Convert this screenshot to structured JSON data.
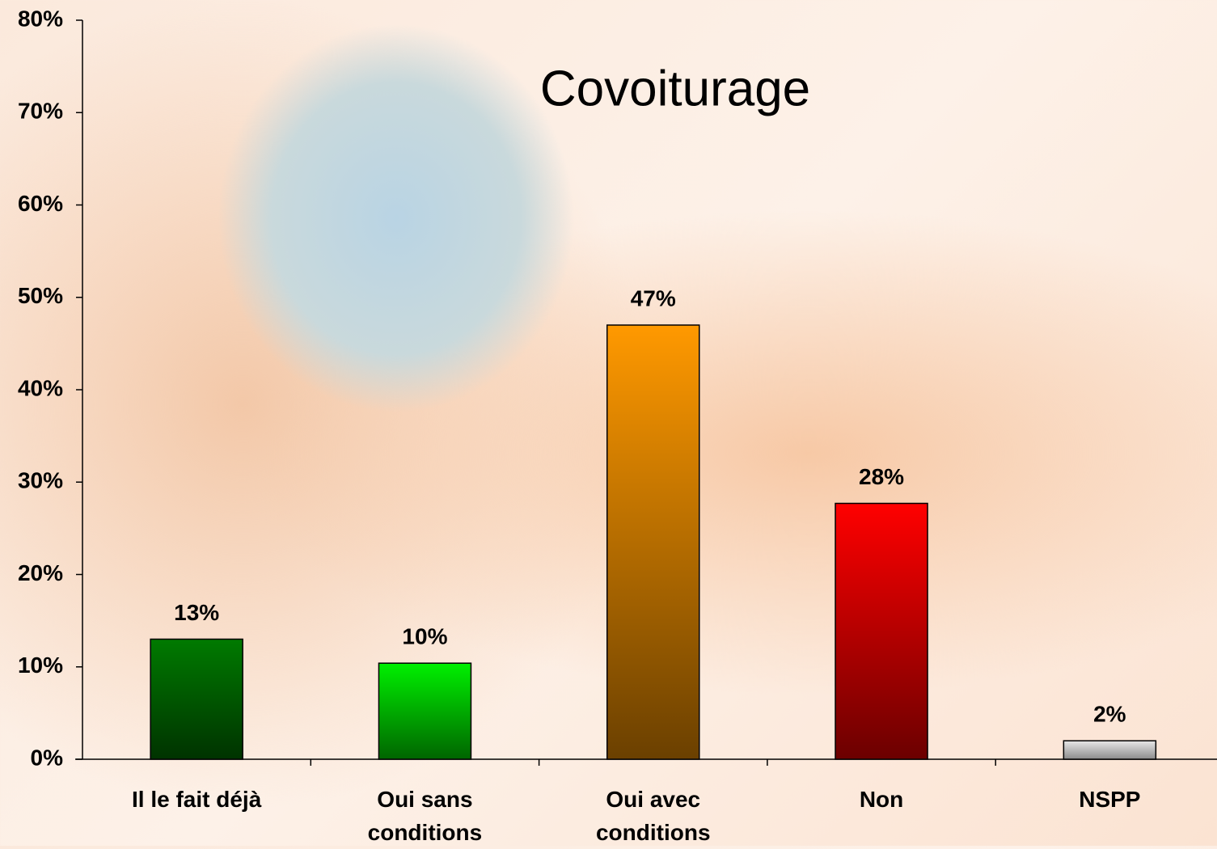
{
  "chart_data": {
    "type": "bar",
    "title": "Covoiturage",
    "categories": [
      "Il le fait déjà",
      "Oui sans conditions",
      "Oui avec conditions",
      "Non",
      "NSPP"
    ],
    "values": [
      13,
      10.4,
      47,
      27.7,
      2
    ],
    "value_labels": [
      "13%",
      "10%",
      "47%",
      "28%",
      "2%"
    ],
    "colors": [
      "#007a00",
      "#00f000",
      "#ff9900",
      "#ff0000",
      "#e8e8e8"
    ],
    "ylim": [
      0,
      80
    ],
    "yticks": [
      {
        "value": 0,
        "label": "0%"
      },
      {
        "value": 10,
        "label": "10%"
      },
      {
        "value": 20,
        "label": "20%"
      },
      {
        "value": 30,
        "label": "30%"
      },
      {
        "value": 40,
        "label": "40%"
      },
      {
        "value": 50,
        "label": "50%"
      },
      {
        "value": 60,
        "label": "60%"
      },
      {
        "value": 70,
        "label": "70%"
      },
      {
        "value": 80,
        "label": "80%"
      }
    ],
    "grid": false
  }
}
